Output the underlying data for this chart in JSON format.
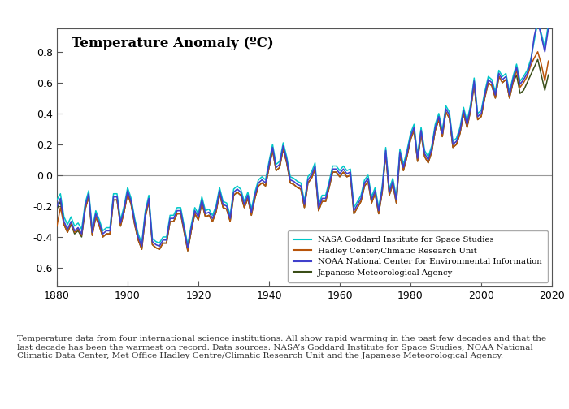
{
  "title": "Temperature Anomaly (ºC)",
  "xlim": [
    1880,
    2020
  ],
  "ylim": [
    -0.72,
    0.95
  ],
  "yticks": [
    -0.6,
    -0.4,
    -0.2,
    0.0,
    0.2,
    0.4,
    0.6,
    0.8
  ],
  "xticks": [
    1880,
    1900,
    1920,
    1940,
    1960,
    1980,
    2000,
    2020
  ],
  "colors": {
    "NASA": "#00C8C8",
    "Hadley": "#B8540A",
    "NOAA": "#4040CC",
    "JMA": "#3A4E18"
  },
  "legend_labels": [
    "NASA Goddard Institute for Space Studies",
    "Hadley Center/Climatic Research Unit",
    "NOAA National Center for Environmental Information",
    "Japanese Meteorological Agency"
  ],
  "caption": "Temperature data from four international science institutions. All show rapid warming in the past few decades and that the\nlast decade has been the warmest on record. Data sources: NASA’s Goddard Institute for Space Studies, NOAA National\nClimatic Data Center, Met Office Hadley Centre/Climatic Research Unit and the Japanese Meteorological Agency.",
  "background_color": "#FFFFFF",
  "years": [
    1880,
    1881,
    1882,
    1883,
    1884,
    1885,
    1886,
    1887,
    1888,
    1889,
    1890,
    1891,
    1892,
    1893,
    1894,
    1895,
    1896,
    1897,
    1898,
    1899,
    1900,
    1901,
    1902,
    1903,
    1904,
    1905,
    1906,
    1907,
    1908,
    1909,
    1910,
    1911,
    1912,
    1913,
    1914,
    1915,
    1916,
    1917,
    1918,
    1919,
    1920,
    1921,
    1922,
    1923,
    1924,
    1925,
    1926,
    1927,
    1928,
    1929,
    1930,
    1931,
    1932,
    1933,
    1934,
    1935,
    1936,
    1937,
    1938,
    1939,
    1940,
    1941,
    1942,
    1943,
    1944,
    1945,
    1946,
    1947,
    1948,
    1949,
    1950,
    1951,
    1952,
    1953,
    1954,
    1955,
    1956,
    1957,
    1958,
    1959,
    1960,
    1961,
    1962,
    1963,
    1964,
    1965,
    1966,
    1967,
    1968,
    1969,
    1970,
    1971,
    1972,
    1973,
    1974,
    1975,
    1976,
    1977,
    1978,
    1979,
    1980,
    1981,
    1982,
    1983,
    1984,
    1985,
    1986,
    1987,
    1988,
    1989,
    1990,
    1991,
    1992,
    1993,
    1994,
    1995,
    1996,
    1997,
    1998,
    1999,
    2000,
    2001,
    2002,
    2003,
    2004,
    2005,
    2006,
    2007,
    2008,
    2009,
    2010,
    2011,
    2012,
    2013,
    2014,
    2015,
    2016,
    2017,
    2018,
    2019
  ],
  "nasa": [
    -0.16,
    -0.12,
    -0.27,
    -0.32,
    -0.27,
    -0.33,
    -0.31,
    -0.35,
    -0.18,
    -0.1,
    -0.35,
    -0.23,
    -0.29,
    -0.36,
    -0.34,
    -0.34,
    -0.12,
    -0.12,
    -0.29,
    -0.2,
    -0.08,
    -0.15,
    -0.28,
    -0.38,
    -0.44,
    -0.23,
    -0.13,
    -0.41,
    -0.43,
    -0.44,
    -0.4,
    -0.4,
    -0.26,
    -0.26,
    -0.21,
    -0.21,
    -0.33,
    -0.45,
    -0.32,
    -0.21,
    -0.25,
    -0.14,
    -0.23,
    -0.22,
    -0.26,
    -0.2,
    -0.08,
    -0.17,
    -0.18,
    -0.26,
    -0.09,
    -0.07,
    -0.09,
    -0.17,
    -0.11,
    -0.22,
    -0.11,
    -0.03,
    -0.01,
    -0.03,
    0.09,
    0.2,
    0.07,
    0.09,
    0.21,
    0.12,
    -0.01,
    -0.02,
    -0.04,
    -0.05,
    -0.17,
    -0.01,
    0.02,
    0.08,
    -0.19,
    -0.13,
    -0.13,
    -0.04,
    0.06,
    0.06,
    0.03,
    0.06,
    0.03,
    0.04,
    -0.21,
    -0.17,
    -0.13,
    -0.03,
    0.0,
    -0.14,
    -0.08,
    -0.21,
    -0.07,
    0.18,
    -0.09,
    -0.02,
    -0.14,
    0.17,
    0.07,
    0.16,
    0.27,
    0.33,
    0.13,
    0.31,
    0.16,
    0.12,
    0.19,
    0.33,
    0.4,
    0.29,
    0.45,
    0.41,
    0.22,
    0.24,
    0.31,
    0.44,
    0.35,
    0.46,
    0.63,
    0.4,
    0.42,
    0.54,
    0.64,
    0.62,
    0.54,
    0.68,
    0.64,
    0.66,
    0.54,
    0.64,
    0.72,
    0.61,
    0.64,
    0.68,
    0.75,
    0.87,
    0.99,
    0.92,
    0.83,
    0.98
  ],
  "hadley": [
    -0.33,
    -0.21,
    -0.32,
    -0.37,
    -0.31,
    -0.37,
    -0.35,
    -0.39,
    -0.22,
    -0.14,
    -0.39,
    -0.27,
    -0.33,
    -0.4,
    -0.38,
    -0.38,
    -0.16,
    -0.16,
    -0.33,
    -0.24,
    -0.12,
    -0.19,
    -0.32,
    -0.42,
    -0.48,
    -0.27,
    -0.17,
    -0.45,
    -0.47,
    -0.48,
    -0.44,
    -0.44,
    -0.3,
    -0.3,
    -0.25,
    -0.25,
    -0.37,
    -0.49,
    -0.36,
    -0.25,
    -0.29,
    -0.18,
    -0.27,
    -0.26,
    -0.3,
    -0.24,
    -0.12,
    -0.21,
    -0.22,
    -0.3,
    -0.13,
    -0.11,
    -0.13,
    -0.21,
    -0.15,
    -0.26,
    -0.15,
    -0.07,
    -0.05,
    -0.07,
    0.05,
    0.16,
    0.03,
    0.05,
    0.17,
    0.08,
    -0.05,
    -0.06,
    -0.08,
    -0.09,
    -0.21,
    -0.05,
    -0.02,
    0.04,
    -0.23,
    -0.17,
    -0.17,
    -0.08,
    0.02,
    0.02,
    -0.01,
    0.02,
    -0.01,
    0.0,
    -0.25,
    -0.21,
    -0.17,
    -0.07,
    -0.04,
    -0.18,
    -0.12,
    -0.25,
    -0.11,
    0.14,
    -0.13,
    -0.06,
    -0.18,
    0.13,
    0.03,
    0.12,
    0.23,
    0.29,
    0.09,
    0.27,
    0.12,
    0.08,
    0.15,
    0.29,
    0.36,
    0.25,
    0.41,
    0.37,
    0.18,
    0.2,
    0.27,
    0.4,
    0.31,
    0.42,
    0.59,
    0.36,
    0.38,
    0.5,
    0.6,
    0.58,
    0.5,
    0.64,
    0.6,
    0.62,
    0.5,
    0.6,
    0.68,
    0.57,
    0.6,
    0.64,
    0.71,
    0.76,
    0.8,
    0.72,
    0.61,
    0.74
  ],
  "noaa": [
    -0.2,
    -0.15,
    -0.3,
    -0.35,
    -0.3,
    -0.36,
    -0.34,
    -0.38,
    -0.2,
    -0.12,
    -0.37,
    -0.25,
    -0.31,
    -0.38,
    -0.36,
    -0.36,
    -0.14,
    -0.14,
    -0.31,
    -0.22,
    -0.1,
    -0.17,
    -0.3,
    -0.4,
    -0.46,
    -0.25,
    -0.15,
    -0.43,
    -0.45,
    -0.46,
    -0.42,
    -0.42,
    -0.28,
    -0.28,
    -0.23,
    -0.23,
    -0.35,
    -0.47,
    -0.34,
    -0.23,
    -0.27,
    -0.16,
    -0.25,
    -0.24,
    -0.28,
    -0.22,
    -0.1,
    -0.19,
    -0.2,
    -0.28,
    -0.11,
    -0.09,
    -0.11,
    -0.19,
    -0.13,
    -0.24,
    -0.13,
    -0.05,
    -0.03,
    -0.05,
    0.07,
    0.18,
    0.05,
    0.07,
    0.19,
    0.1,
    -0.03,
    -0.04,
    -0.06,
    -0.07,
    -0.19,
    -0.03,
    0.0,
    0.06,
    -0.21,
    -0.15,
    -0.15,
    -0.06,
    0.04,
    0.04,
    0.01,
    0.04,
    0.01,
    0.02,
    -0.23,
    -0.19,
    -0.15,
    -0.05,
    -0.02,
    -0.16,
    -0.1,
    -0.23,
    -0.09,
    0.16,
    -0.11,
    -0.04,
    -0.16,
    0.15,
    0.05,
    0.14,
    0.25,
    0.31,
    0.11,
    0.29,
    0.14,
    0.1,
    0.17,
    0.31,
    0.38,
    0.27,
    0.43,
    0.39,
    0.2,
    0.22,
    0.29,
    0.42,
    0.33,
    0.44,
    0.61,
    0.38,
    0.4,
    0.52,
    0.62,
    0.6,
    0.52,
    0.66,
    0.62,
    0.64,
    0.52,
    0.62,
    0.7,
    0.59,
    0.62,
    0.66,
    0.73,
    0.9,
    1.0,
    0.9,
    0.8,
    0.95
  ],
  "jma": [
    -0.22,
    -0.17,
    -0.32,
    -0.37,
    -0.32,
    -0.38,
    -0.36,
    -0.4,
    -0.22,
    -0.14,
    -0.39,
    -0.27,
    -0.33,
    -0.4,
    -0.38,
    -0.38,
    -0.16,
    -0.16,
    -0.33,
    -0.24,
    -0.12,
    -0.19,
    -0.32,
    -0.42,
    -0.48,
    -0.27,
    -0.17,
    -0.45,
    -0.47,
    -0.48,
    -0.44,
    -0.44,
    -0.3,
    -0.3,
    -0.25,
    -0.25,
    -0.37,
    -0.49,
    -0.36,
    -0.25,
    -0.29,
    -0.18,
    -0.27,
    -0.26,
    -0.3,
    -0.24,
    -0.12,
    -0.21,
    -0.22,
    -0.3,
    -0.13,
    -0.11,
    -0.13,
    -0.21,
    -0.15,
    -0.26,
    -0.15,
    -0.07,
    -0.05,
    -0.07,
    0.05,
    0.16,
    0.03,
    0.05,
    0.17,
    0.08,
    -0.05,
    -0.06,
    -0.08,
    -0.09,
    -0.21,
    -0.05,
    -0.02,
    0.04,
    -0.23,
    -0.17,
    -0.17,
    -0.08,
    0.02,
    0.02,
    -0.01,
    0.02,
    -0.01,
    0.0,
    -0.25,
    -0.21,
    -0.17,
    -0.07,
    -0.04,
    -0.18,
    -0.12,
    -0.25,
    -0.11,
    0.14,
    -0.13,
    -0.06,
    -0.18,
    0.13,
    0.03,
    0.12,
    0.23,
    0.29,
    0.09,
    0.27,
    0.12,
    0.08,
    0.15,
    0.29,
    0.36,
    0.25,
    0.41,
    0.37,
    0.18,
    0.2,
    0.27,
    0.4,
    0.31,
    0.42,
    0.59,
    0.36,
    0.38,
    0.5,
    0.6,
    0.58,
    0.5,
    0.64,
    0.6,
    0.62,
    0.5,
    0.6,
    0.65,
    0.53,
    0.55,
    0.6,
    0.65,
    0.7,
    0.75,
    0.65,
    0.55,
    0.65
  ]
}
